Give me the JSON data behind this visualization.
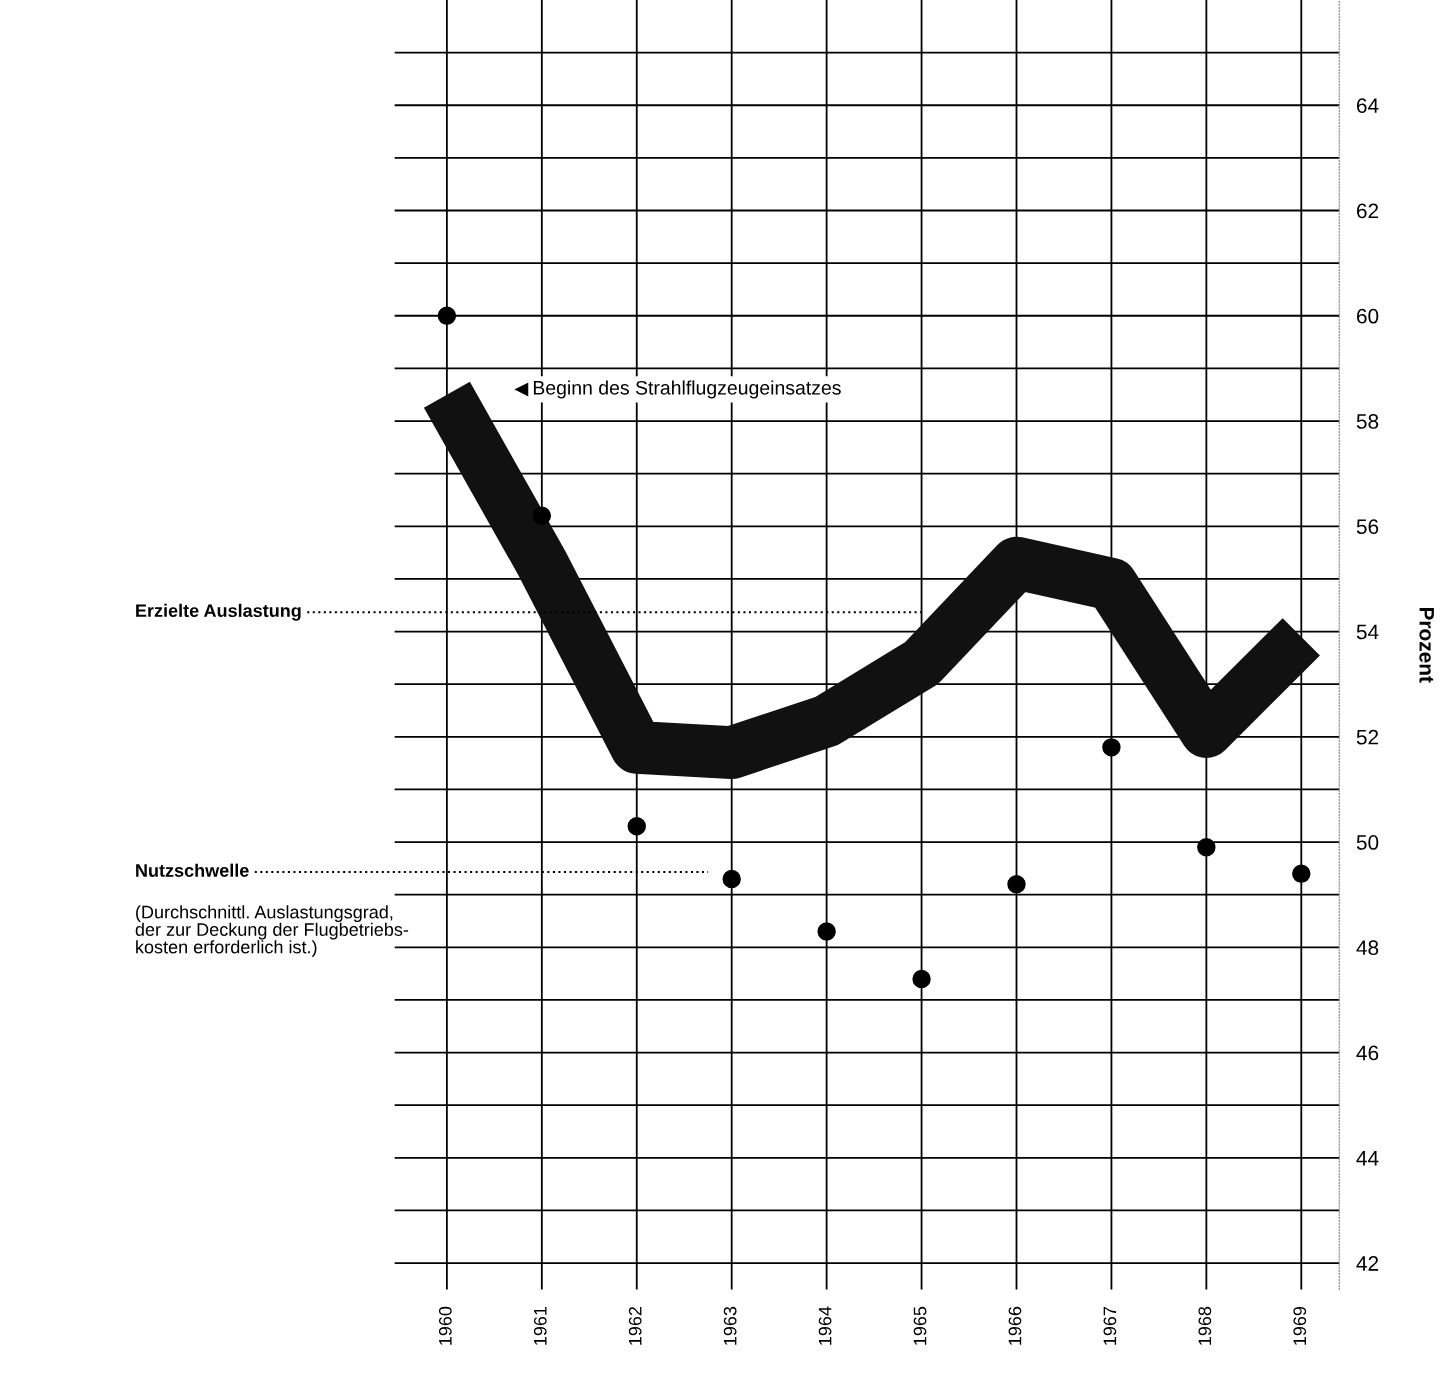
{
  "chart_data": {
    "type": "line",
    "ylabel": "Prozent",
    "x": [
      1960,
      1961,
      1962,
      1963,
      1964,
      1965,
      1966,
      1967,
      1968,
      1969
    ],
    "series": [
      {
        "color": "#111111",
        "values": [
          58.5,
          55.3,
          51.8,
          51.7,
          52.3,
          53.4,
          55.3,
          54.9,
          52.1,
          53.9
        ]
      },
      {
        "type": "scatter",
        "color": "#000000",
        "marker": "circle",
        "values": [
          60.0,
          56.2,
          50.3,
          49.3,
          48.3,
          47.4,
          49.2,
          51.8,
          49.9,
          49.4
        ]
      }
    ],
    "xlim": [
      1959.45,
      1969.4
    ],
    "ylim": [
      41.5,
      66
    ],
    "xticks": [
      1960,
      1961,
      1962,
      1963,
      1964,
      1965,
      1966,
      1967,
      1968,
      1969
    ],
    "yticks": [
      42,
      {
        "value": 43,
        "label": null
      },
      44,
      {
        "value": 45,
        "label": null
      },
      46,
      {
        "value": 47,
        "label": null
      },
      48,
      {
        "value": 49,
        "label": null
      },
      50,
      {
        "value": 51,
        "label": null
      },
      52,
      {
        "value": 53,
        "label": null
      },
      54,
      {
        "value": 55,
        "label": null
      },
      56,
      {
        "value": 57,
        "label": null
      },
      58,
      {
        "value": 59,
        "label": null
      },
      60,
      {
        "value": 61,
        "label": null
      },
      62,
      {
        "value": 63,
        "label": null
      },
      64,
      {
        "value": 65,
        "label": null
      }
    ],
    "grid": true,
    "annotations": [
      "Erzielte Auslastung",
      "Nutzschwelle",
      "(Durchschnittl. Auslastungsgrad,\nder zur Deckung der Flugbetriebs-\nkosten erforderlich ist.)",
      {
        "text": "Beginn des Strahlflugzeugeinsatzes",
        "x": 1960.8,
        "y": 58.6
      }
    ]
  }
}
